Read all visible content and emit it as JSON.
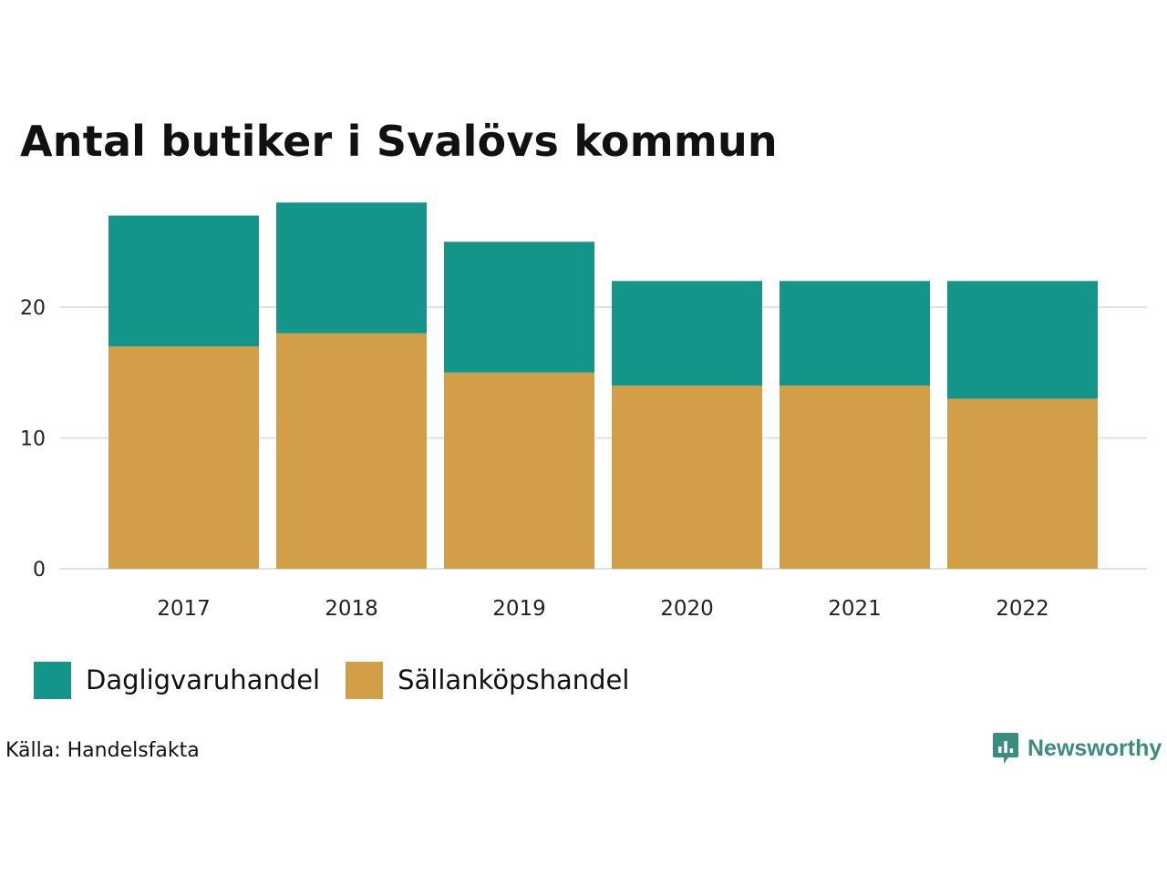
{
  "colors": {
    "dagligvaruhandel": "#14958a",
    "sallankopshandel": "#d29e48",
    "grid": "#e1e1e1",
    "brand": "#3a8c80"
  },
  "chart_data": {
    "type": "bar",
    "stacked": true,
    "title": "Antal butiker i Svalövs kommun",
    "xlabel": "",
    "ylabel": "",
    "categories": [
      "2017",
      "2018",
      "2019",
      "2020",
      "2021",
      "2022"
    ],
    "series": [
      {
        "name": "Sällanköpshandel",
        "values": [
          17,
          18,
          15,
          14,
          14,
          13
        ]
      },
      {
        "name": "Dagligvaruhandel",
        "values": [
          10,
          10,
          10,
          8,
          8,
          9
        ]
      }
    ],
    "ylim": [
      0,
      28
    ],
    "yticks": [
      0,
      10,
      20
    ],
    "grid": true,
    "legend_position": "bottom-left"
  },
  "legend": {
    "items": [
      {
        "label": "Dagligvaruhandel",
        "color_key": "dagligvaruhandel"
      },
      {
        "label": "Sällanköpshandel",
        "color_key": "sallankopshandel"
      }
    ]
  },
  "footer": {
    "source": "Källa: Handelsfakta",
    "brand": "Newsworthy",
    "brand_icon": "bar-chart-speech-bubble-icon"
  }
}
